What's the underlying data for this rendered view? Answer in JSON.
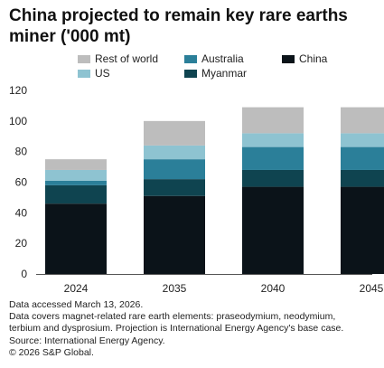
{
  "chart_data": {
    "type": "bar",
    "stacked": true,
    "title": "China projected to remain key rare earths miner ('000 mt)",
    "categories": [
      "2024",
      "2035",
      "2040",
      "2045"
    ],
    "series": [
      {
        "name": "China",
        "color": "#0b1319",
        "values": [
          46,
          51,
          57,
          57
        ]
      },
      {
        "name": "Myanmar",
        "color": "#0f4450",
        "values": [
          12,
          11,
          11,
          11
        ]
      },
      {
        "name": "Australia",
        "color": "#2b7f99",
        "values": [
          3,
          13,
          15,
          15
        ]
      },
      {
        "name": "US",
        "color": "#8ec3d1",
        "values": [
          7,
          9,
          9,
          9
        ]
      },
      {
        "name": "Rest of world",
        "color": "#bdbdbd",
        "values": [
          7,
          16,
          17,
          17
        ]
      }
    ],
    "ylim": [
      0,
      120
    ],
    "yticks": [
      0,
      20,
      40,
      60,
      80,
      100,
      120
    ],
    "grid": false,
    "legend_position": "top"
  },
  "footnotes": [
    "Data accessed March 13, 2026.",
    "Data covers magnet-related rare earth elements: praseodymium, neodymium,",
    "terbium and dysprosium. Projection is International Energy Agency's base case.",
    "Source: International Energy Agency.",
    "© 2026 S&P Global."
  ]
}
